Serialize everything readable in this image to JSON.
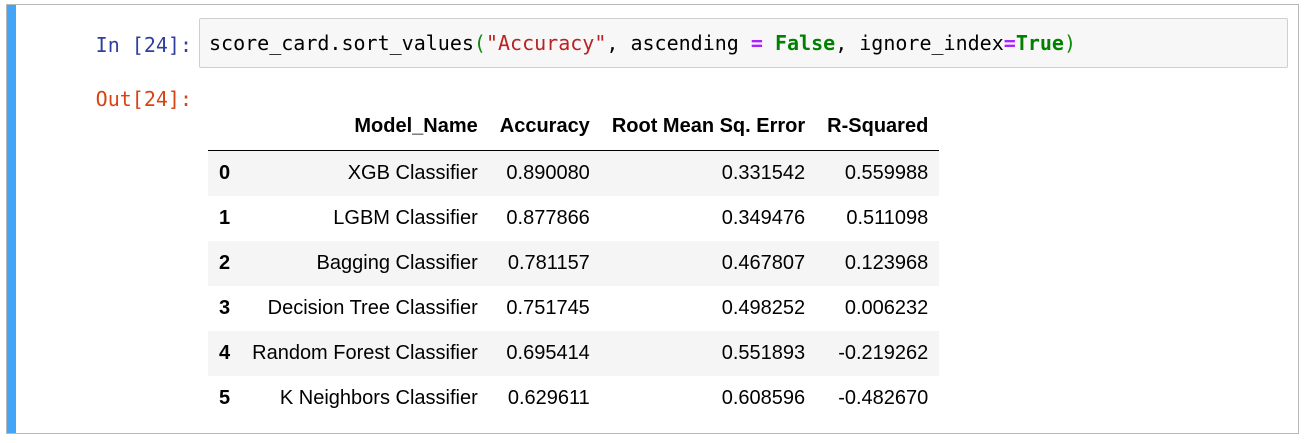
{
  "input_prompt": "In [24]:",
  "output_prompt": "Out[24]:",
  "code": {
    "p1": "score_card.sort_values",
    "p2": "(",
    "p3": "\"Accuracy\"",
    "p4": ", ascending ",
    "p5": "=",
    "p6": " ",
    "p7": "False",
    "p8": ", ignore_index",
    "p9": "=",
    "p10": "True",
    "p11": ")"
  },
  "table": {
    "columns": [
      "",
      "Model_Name",
      "Accuracy",
      "Root Mean Sq. Error",
      "R-Squared"
    ],
    "rows": [
      {
        "index": "0",
        "model": "XGB Classifier",
        "accuracy": "0.890080",
        "rmse": "0.331542",
        "r2": "0.559988"
      },
      {
        "index": "1",
        "model": "LGBM Classifier",
        "accuracy": "0.877866",
        "rmse": "0.349476",
        "r2": "0.511098"
      },
      {
        "index": "2",
        "model": "Bagging Classifier",
        "accuracy": "0.781157",
        "rmse": "0.467807",
        "r2": "0.123968"
      },
      {
        "index": "3",
        "model": "Decision Tree Classifier",
        "accuracy": "0.751745",
        "rmse": "0.498252",
        "r2": "0.006232"
      },
      {
        "index": "4",
        "model": "Random Forest Classifier",
        "accuracy": "0.695414",
        "rmse": "0.551893",
        "r2": "-0.219262"
      },
      {
        "index": "5",
        "model": "K Neighbors Classifier",
        "accuracy": "0.629611",
        "rmse": "0.608596",
        "r2": "-0.482670"
      }
    ]
  },
  "colors": {
    "cell_bar": "#42a5f5",
    "in_prompt": "#303f9f",
    "out_prompt": "#d84315",
    "string": "#ba2121",
    "operator": "#aa22ff",
    "keyword": "#008000"
  }
}
